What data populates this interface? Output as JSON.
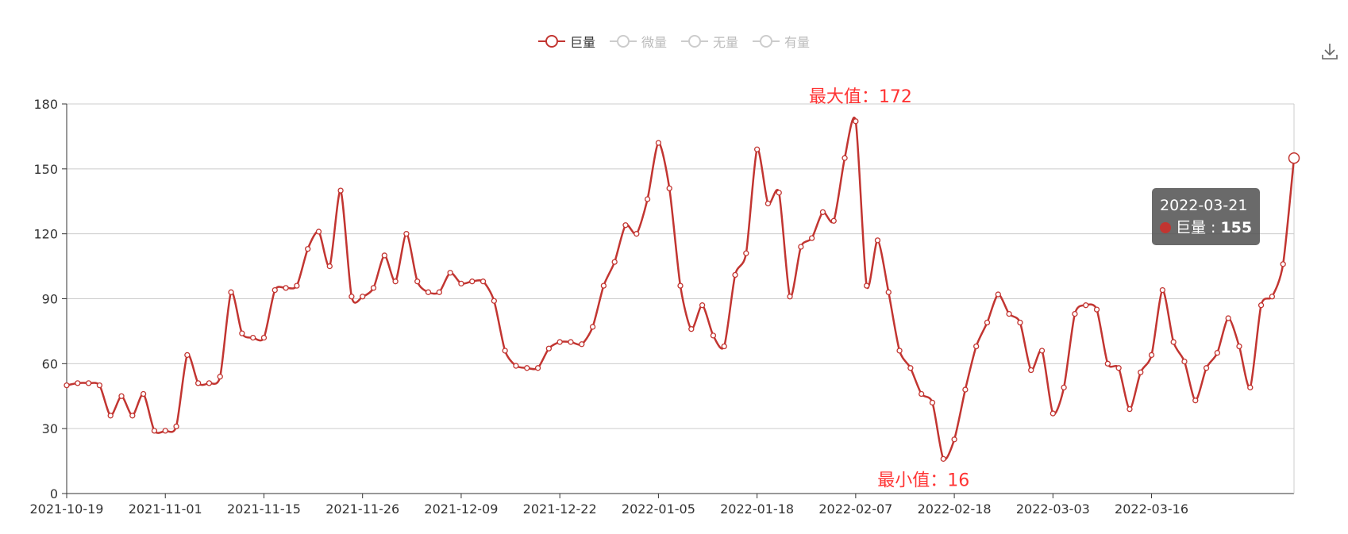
{
  "legend": [
    {
      "label": "巨量",
      "active": true
    },
    {
      "label": "微量",
      "active": false
    },
    {
      "label": "无量",
      "active": false
    },
    {
      "label": "有量",
      "active": false
    }
  ],
  "toolbar": {
    "download_icon": "download-icon"
  },
  "tooltip": {
    "date": "2022-03-21",
    "series": "巨量",
    "value": "155"
  },
  "chart_data": {
    "type": "line",
    "series": [
      {
        "name": "巨量",
        "color": "#c23531",
        "smooth": true,
        "values": [
          50,
          51,
          51,
          50,
          36,
          45,
          36,
          46,
          29,
          29,
          31,
          64,
          51,
          51,
          54,
          93,
          74,
          72,
          72,
          94,
          95,
          96,
          113,
          121,
          105,
          140,
          91,
          91,
          95,
          110,
          98,
          120,
          98,
          93,
          93,
          102,
          97,
          98,
          98,
          89,
          66,
          59,
          58,
          58,
          67,
          70,
          70,
          69,
          77,
          96,
          107,
          124,
          120,
          136,
          162,
          141,
          96,
          76,
          87,
          73,
          68,
          101,
          111,
          159,
          134,
          139,
          91,
          114,
          118,
          130,
          126,
          155,
          172,
          96,
          117,
          93,
          66,
          58,
          46,
          42,
          16,
          25,
          48,
          68,
          79,
          92,
          83,
          79,
          57,
          66,
          37,
          49,
          83,
          87,
          85,
          60,
          58,
          39,
          56,
          64,
          94,
          70,
          61,
          43,
          58,
          65,
          81,
          68,
          49,
          87,
          91,
          106,
          155
        ]
      }
    ],
    "x_tick_labels": [
      "2021-10-19",
      "2021-11-01",
      "2021-11-15",
      "2021-11-26",
      "2021-12-09",
      "2021-12-22",
      "2022-01-05",
      "2022-01-18",
      "2022-02-07",
      "2022-02-18",
      "2022-03-03",
      "2022-03-16"
    ],
    "x_tick_indices": [
      0,
      9,
      18,
      27,
      36,
      45,
      54,
      63,
      72,
      81,
      90,
      99
    ],
    "y_ticks": [
      0,
      30,
      60,
      90,
      120,
      150,
      180
    ],
    "ylim": [
      0,
      180
    ],
    "annotations": {
      "max": {
        "label": "最大值：172",
        "index": 72,
        "value": 172
      },
      "min": {
        "label": "最小值：16",
        "index": 80,
        "value": 16
      }
    },
    "highlight_index": 112,
    "grid": true
  }
}
